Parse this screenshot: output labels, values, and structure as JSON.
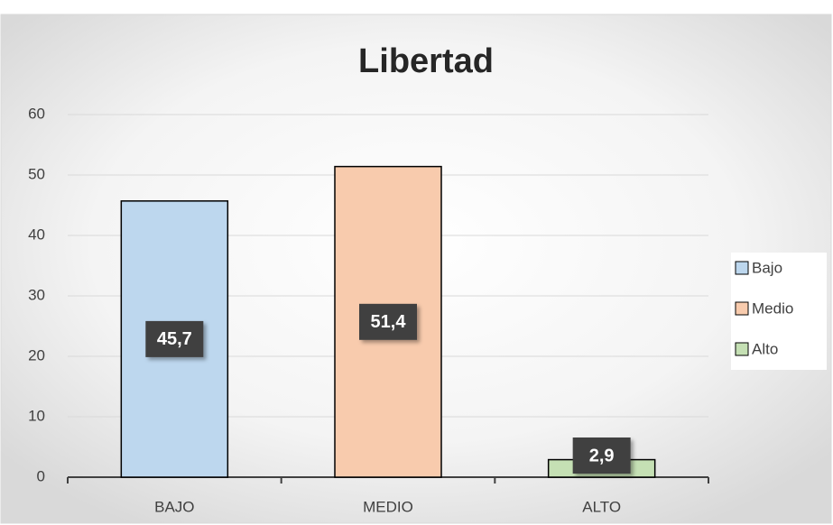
{
  "chart_data": {
    "type": "bar",
    "title": "Libertad",
    "categories": [
      "BAJO",
      "MEDIO",
      "ALTO"
    ],
    "series": [
      {
        "name": "Bajo",
        "color": "#bdd7ee",
        "values": [
          45.7,
          null,
          null
        ],
        "value_labels": [
          "45,7",
          null,
          null
        ]
      },
      {
        "name": "Medio",
        "color": "#f8cbad",
        "values": [
          null,
          51.4,
          null
        ],
        "value_labels": [
          null,
          "51,4",
          null
        ]
      },
      {
        "name": "Alto",
        "color": "#c5e0b4",
        "values": [
          null,
          null,
          2.9
        ],
        "value_labels": [
          null,
          null,
          "2,9"
        ]
      }
    ],
    "ylim": [
      0,
      60
    ],
    "yticks": [
      0,
      10,
      20,
      30,
      40,
      50,
      60
    ],
    "grid": true,
    "legend": "right"
  }
}
